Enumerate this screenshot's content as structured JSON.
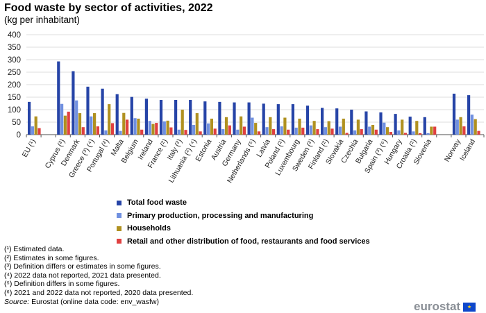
{
  "chart_data": {
    "type": "bar",
    "title": "Food waste by sector of activities, 2022",
    "subtitle": "(kg per inhabitant)",
    "ylim": [
      0,
      400
    ],
    "yticks": [
      0,
      50,
      100,
      150,
      200,
      250,
      300,
      350,
      400
    ],
    "grid": true,
    "legend_position": "bottom",
    "categories": [
      "EU (¹)",
      "",
      "Cyprus (²)",
      "Denmark",
      "Greece (³) (⁴)",
      "Portugal (²)",
      "Malta",
      "Belgium",
      "Ireland",
      "France (²)",
      "Italy (²)",
      "Lithuania (²) (⁴)",
      "Estonia",
      "Austria",
      "Germany",
      "Netherlands (⁵)",
      "Latvia",
      "Poland (²)",
      "Luxembourg",
      "Sweden (²)",
      "Finland (²)",
      "Slovakia",
      "Czechia",
      "Bulgaria",
      "Spain (³) (⁶)",
      "Hungary",
      "Croatia (²)",
      "Slovenia",
      "",
      "Norway",
      "Iceland"
    ],
    "series": [
      {
        "name": "Total food waste",
        "color": "#2644a7",
        "values": [
          131,
          null,
          293,
          254,
          192,
          184,
          162,
          151,
          144,
          139,
          139,
          139,
          133,
          131,
          129,
          129,
          124,
          122,
          122,
          116,
          107,
          105,
          100,
          93,
          89,
          83,
          72,
          70,
          null,
          164,
          158
        ]
      },
      {
        "name": "Primary production, processing and manufacturing",
        "color": "#7090e0",
        "values": [
          33,
          null,
          123,
          137,
          73,
          17,
          15,
          66,
          55,
          53,
          20,
          39,
          45,
          22,
          20,
          68,
          30,
          33,
          28,
          37,
          30,
          32,
          17,
          32,
          48,
          17,
          13,
          6,
          null,
          60,
          80
        ]
      },
      {
        "name": "Households",
        "color": "#b09120",
        "values": [
          73,
          null,
          76,
          86,
          86,
          122,
          87,
          64,
          43,
          56,
          100,
          86,
          64,
          70,
          73,
          47,
          70,
          68,
          64,
          55,
          54,
          64,
          60,
          39,
          30,
          60,
          55,
          32,
          null,
          70,
          62
        ]
      },
      {
        "name": "Retail and other distribution of food, restaurants and food services",
        "color": "#e04040",
        "values": [
          26,
          null,
          92,
          30,
          33,
          46,
          60,
          20,
          47,
          29,
          19,
          13,
          24,
          37,
          32,
          13,
          22,
          20,
          28,
          22,
          24,
          7,
          22,
          20,
          11,
          7,
          6,
          32,
          null,
          33,
          15
        ]
      }
    ]
  },
  "footnotes": [
    "(¹) Estimated data.",
    "(²) Estimates in some figures.",
    "(³) Definition differs or estimates in some figures.",
    "(⁴) 2022 data not reported, 2021 data presented.",
    "(⁵) Definition differs in some figures.",
    "(⁶) 2021 and 2022 data not reported, 2020 data presented."
  ],
  "source_label": "Source:",
  "source_text": " Eurostat (online data code: env_wasfw)",
  "logo": "eurostat"
}
